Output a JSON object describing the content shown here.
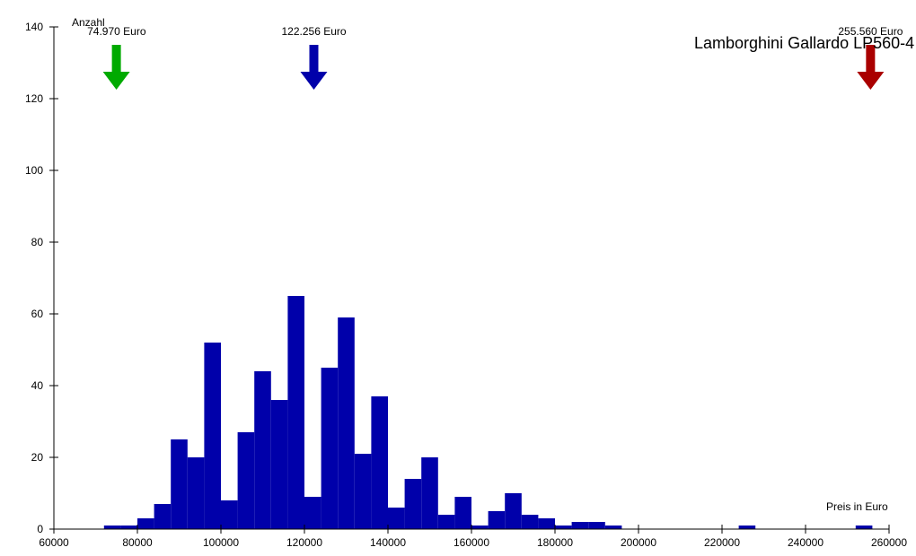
{
  "chart_data": {
    "type": "bar",
    "title": "Lamborghini Gallardo LP560-4",
    "xlabel": "Preis in Euro",
    "ylabel": "Anzahl",
    "xlim": [
      60000,
      260000
    ],
    "ylim": [
      0,
      140
    ],
    "grid": false,
    "x_ticks": [
      "60000",
      "80000",
      "100000",
      "120000",
      "140000",
      "160000",
      "180000",
      "200000",
      "220000",
      "240000",
      "260000"
    ],
    "y_ticks": [
      "0",
      "20",
      "40",
      "60",
      "80",
      "100",
      "120",
      "140"
    ],
    "bin_width": 4000,
    "bins": [
      {
        "start": 72000,
        "count": 1
      },
      {
        "start": 76000,
        "count": 1
      },
      {
        "start": 80000,
        "count": 3
      },
      {
        "start": 84000,
        "count": 7
      },
      {
        "start": 88000,
        "count": 25
      },
      {
        "start": 92000,
        "count": 20
      },
      {
        "start": 96000,
        "count": 52
      },
      {
        "start": 100000,
        "count": 8
      },
      {
        "start": 104000,
        "count": 27
      },
      {
        "start": 108000,
        "count": 44
      },
      {
        "start": 112000,
        "count": 36
      },
      {
        "start": 116000,
        "count": 65
      },
      {
        "start": 120000,
        "count": 9
      },
      {
        "start": 124000,
        "count": 45
      },
      {
        "start": 128000,
        "count": 59
      },
      {
        "start": 132000,
        "count": 21
      },
      {
        "start": 136000,
        "count": 37
      },
      {
        "start": 140000,
        "count": 6
      },
      {
        "start": 144000,
        "count": 14
      },
      {
        "start": 148000,
        "count": 20
      },
      {
        "start": 152000,
        "count": 4
      },
      {
        "start": 156000,
        "count": 9
      },
      {
        "start": 160000,
        "count": 1
      },
      {
        "start": 164000,
        "count": 5
      },
      {
        "start": 168000,
        "count": 10
      },
      {
        "start": 172000,
        "count": 4
      },
      {
        "start": 176000,
        "count": 3
      },
      {
        "start": 180000,
        "count": 1
      },
      {
        "start": 184000,
        "count": 2
      },
      {
        "start": 188000,
        "count": 2
      },
      {
        "start": 192000,
        "count": 1
      },
      {
        "start": 224000,
        "count": 1
      },
      {
        "start": 252000,
        "count": 1
      }
    ],
    "bar_color": "#0000AA",
    "markers": [
      {
        "label": "74.970 Euro",
        "value": 74970,
        "color": "#00AA00"
      },
      {
        "label": "122.256 Euro",
        "value": 122256,
        "color": "#0000AA"
      },
      {
        "label": "255.560 Euro",
        "value": 255560,
        "color": "#AA0000"
      }
    ]
  }
}
